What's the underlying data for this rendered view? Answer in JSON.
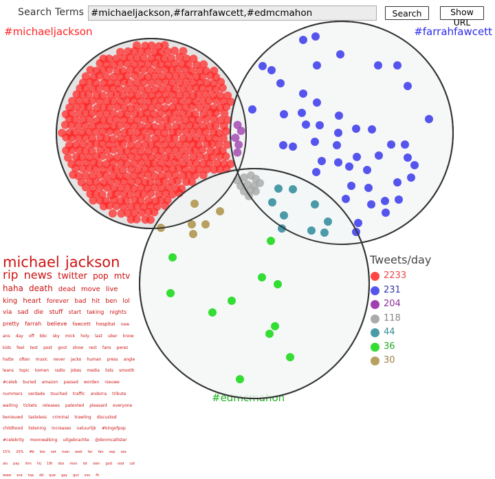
{
  "search": {
    "label": "Search Terms :",
    "value": "#michaeljackson,#farrahfawcett,#edmcmahon",
    "search_button": "Search",
    "url_button": "Show URL"
  },
  "terms": {
    "t1": "#michaeljackson",
    "t2": "#farrahfawcett",
    "t3": "#edmcmahon"
  },
  "colors": {
    "t1": "#ff2222",
    "t2": "#5555ee",
    "t3": "#33dd33",
    "t1_t2": "#a040b0",
    "t1_t2_t3": "#a8a8a8",
    "t2_t3": "#4a9aa8",
    "t1_t3": "#b8a060"
  },
  "legend": {
    "title": "Tweets/day",
    "items": [
      {
        "value": "2233",
        "color": "#ff4444",
        "text_color": "#ee4444"
      },
      {
        "value": "231",
        "color": "#5555ee",
        "text_color": "#3333aa"
      },
      {
        "value": "204",
        "color": "#a040b0",
        "text_color": "#8a2e9a"
      },
      {
        "value": "118",
        "color": "#aaaaaa",
        "text_color": "#888888"
      },
      {
        "value": "44",
        "color": "#4a9aa8",
        "text_color": "#3a8a98"
      },
      {
        "value": "36",
        "color": "#33dd33",
        "text_color": "#22aa22"
      },
      {
        "value": "30",
        "color": "#b8a060",
        "text_color": "#9a8040"
      }
    ]
  },
  "word_cloud": {
    "words": [
      {
        "text": "michael",
        "size": 21
      },
      {
        "text": "jackson",
        "size": 21
      },
      {
        "text": "rip",
        "size": 17
      },
      {
        "text": "news",
        "size": 16
      },
      {
        "text": "twitter",
        "size": 13
      },
      {
        "text": "pop",
        "size": 12
      },
      {
        "text": "mtv",
        "size": 12
      },
      {
        "text": "haha",
        "size": 12
      },
      {
        "text": "death",
        "size": 12
      },
      {
        "text": "dead",
        "size": 10
      },
      {
        "text": "move",
        "size": 10
      },
      {
        "text": "live",
        "size": 10
      },
      {
        "text": "king",
        "size": 10
      },
      {
        "text": "heart",
        "size": 10
      },
      {
        "text": "forever",
        "size": 9
      },
      {
        "text": "bad",
        "size": 9
      },
      {
        "text": "hit",
        "size": 9
      },
      {
        "text": "ben",
        "size": 9
      },
      {
        "text": "lol",
        "size": 9
      },
      {
        "text": "via",
        "size": 9
      },
      {
        "text": "sad",
        "size": 9
      },
      {
        "text": "die",
        "size": 9
      },
      {
        "text": "stuff",
        "size": 9
      },
      {
        "text": "start",
        "size": 8
      },
      {
        "text": "taking",
        "size": 8
      },
      {
        "text": "nights",
        "size": 8
      },
      {
        "text": "pretty",
        "size": 8
      },
      {
        "text": "farrah",
        "size": 8
      },
      {
        "text": "believe",
        "size": 8
      },
      {
        "text": "fawcett",
        "size": 7
      },
      {
        "text": "hospital",
        "size": 7
      },
      {
        "text": "new",
        "size": 6
      },
      {
        "text": "ans",
        "size": 6
      },
      {
        "text": "day",
        "size": 6
      },
      {
        "text": "off",
        "size": 6
      },
      {
        "text": "bbc",
        "size": 6
      },
      {
        "text": "sky",
        "size": 6
      },
      {
        "text": "mick",
        "size": 6
      },
      {
        "text": "holy",
        "size": 6
      },
      {
        "text": "last",
        "size": 6
      },
      {
        "text": "uber",
        "size": 6
      },
      {
        "text": "know",
        "size": 6
      },
      {
        "text": "kids",
        "size": 6
      },
      {
        "text": "feel",
        "size": 6
      },
      {
        "text": "test",
        "size": 6
      },
      {
        "text": "post",
        "size": 6
      },
      {
        "text": "govt",
        "size": 6
      },
      {
        "text": "show",
        "size": 6
      },
      {
        "text": "rest",
        "size": 6
      },
      {
        "text": "fans",
        "size": 6
      },
      {
        "text": "perez",
        "size": 6
      },
      {
        "text": "hatte",
        "size": 6
      },
      {
        "text": "often",
        "size": 6
      },
      {
        "text": "music",
        "size": 6
      },
      {
        "text": "never",
        "size": 6
      },
      {
        "text": "jacko",
        "size": 6
      },
      {
        "text": "human",
        "size": 6
      },
      {
        "text": "press",
        "size": 6
      },
      {
        "text": "angle",
        "size": 6
      },
      {
        "text": "leans",
        "size": 6
      },
      {
        "text": "topic",
        "size": 6
      },
      {
        "text": "komen",
        "size": 6
      },
      {
        "text": "radio",
        "size": 6
      },
      {
        "text": "jokes",
        "size": 6
      },
      {
        "text": "media",
        "size": 6
      },
      {
        "text": "lists",
        "size": 6
      },
      {
        "text": "smooth",
        "size": 6
      },
      {
        "text": "#celeb",
        "size": 6
      },
      {
        "text": "buried",
        "size": 6
      },
      {
        "text": "amazon",
        "size": 6
      },
      {
        "text": "passed",
        "size": 6
      },
      {
        "text": "worden",
        "size": 6
      },
      {
        "text": "nieuwe",
        "size": 6
      },
      {
        "text": "nummers",
        "size": 6
      },
      {
        "text": "verdade",
        "size": 6
      },
      {
        "text": "touched",
        "size": 6
      },
      {
        "text": "traffic",
        "size": 6
      },
      {
        "text": "andorra",
        "size": 6
      },
      {
        "text": "tribute",
        "size": 6
      },
      {
        "text": "waiting",
        "size": 6
      },
      {
        "text": "tickets",
        "size": 6
      },
      {
        "text": "releases",
        "size": 6
      },
      {
        "text": "patented",
        "size": 6
      },
      {
        "text": "pleasant",
        "size": 6
      },
      {
        "text": "everyone",
        "size": 6
      },
      {
        "text": "benieuwd",
        "size": 6
      },
      {
        "text": "tasteless",
        "size": 6
      },
      {
        "text": "criminal",
        "size": 6
      },
      {
        "text": "trawling",
        "size": 6
      },
      {
        "text": "discusted",
        "size": 6
      },
      {
        "text": "childhood",
        "size": 6
      },
      {
        "text": "listening",
        "size": 6
      },
      {
        "text": "increases",
        "size": 6
      },
      {
        "text": "natuurlijk",
        "size": 6
      },
      {
        "text": "#kingofpop",
        "size": 6
      },
      {
        "text": "#celebrity",
        "size": 6
      },
      {
        "text": "moonwalking",
        "size": 6
      },
      {
        "text": "uitgebrachte",
        "size": 6
      },
      {
        "text": "@donmcallister",
        "size": 6
      },
      {
        "text": "15%",
        "size": 5
      },
      {
        "text": "20%",
        "size": 5
      },
      {
        "text": "#b",
        "size": 5
      },
      {
        "text": "bie",
        "size": 5
      },
      {
        "text": "net",
        "size": 5
      },
      {
        "text": "man",
        "size": 5
      },
      {
        "text": "web",
        "size": 5
      },
      {
        "text": "far",
        "size": 5
      },
      {
        "text": "fan",
        "size": 5
      },
      {
        "text": "sep",
        "size": 5
      },
      {
        "text": "ses",
        "size": 5
      },
      {
        "text": "als",
        "size": 5
      },
      {
        "text": "pay",
        "size": 5
      },
      {
        "text": "ihm",
        "size": 5
      },
      {
        "text": "hij",
        "size": 5
      },
      {
        "text": "19t",
        "size": 5
      },
      {
        "text": "dos",
        "size": 5
      },
      {
        "text": "mon",
        "size": 5
      },
      {
        "text": "lot",
        "size": 5
      },
      {
        "text": "own",
        "size": 5
      },
      {
        "text": "god",
        "size": 5
      },
      {
        "text": "ood",
        "size": 5
      },
      {
        "text": "cat",
        "size": 5
      },
      {
        "text": "www",
        "size": 5
      },
      {
        "text": "era",
        "size": 5
      },
      {
        "text": "top",
        "size": 5
      },
      {
        "text": "dd",
        "size": 5
      },
      {
        "text": "que",
        "size": 5
      },
      {
        "text": "gay",
        "size": 5
      },
      {
        "text": "gut",
        "size": 5
      },
      {
        "text": "xxs",
        "size": 5
      },
      {
        "text": "fit",
        "size": 5
      }
    ]
  }
}
